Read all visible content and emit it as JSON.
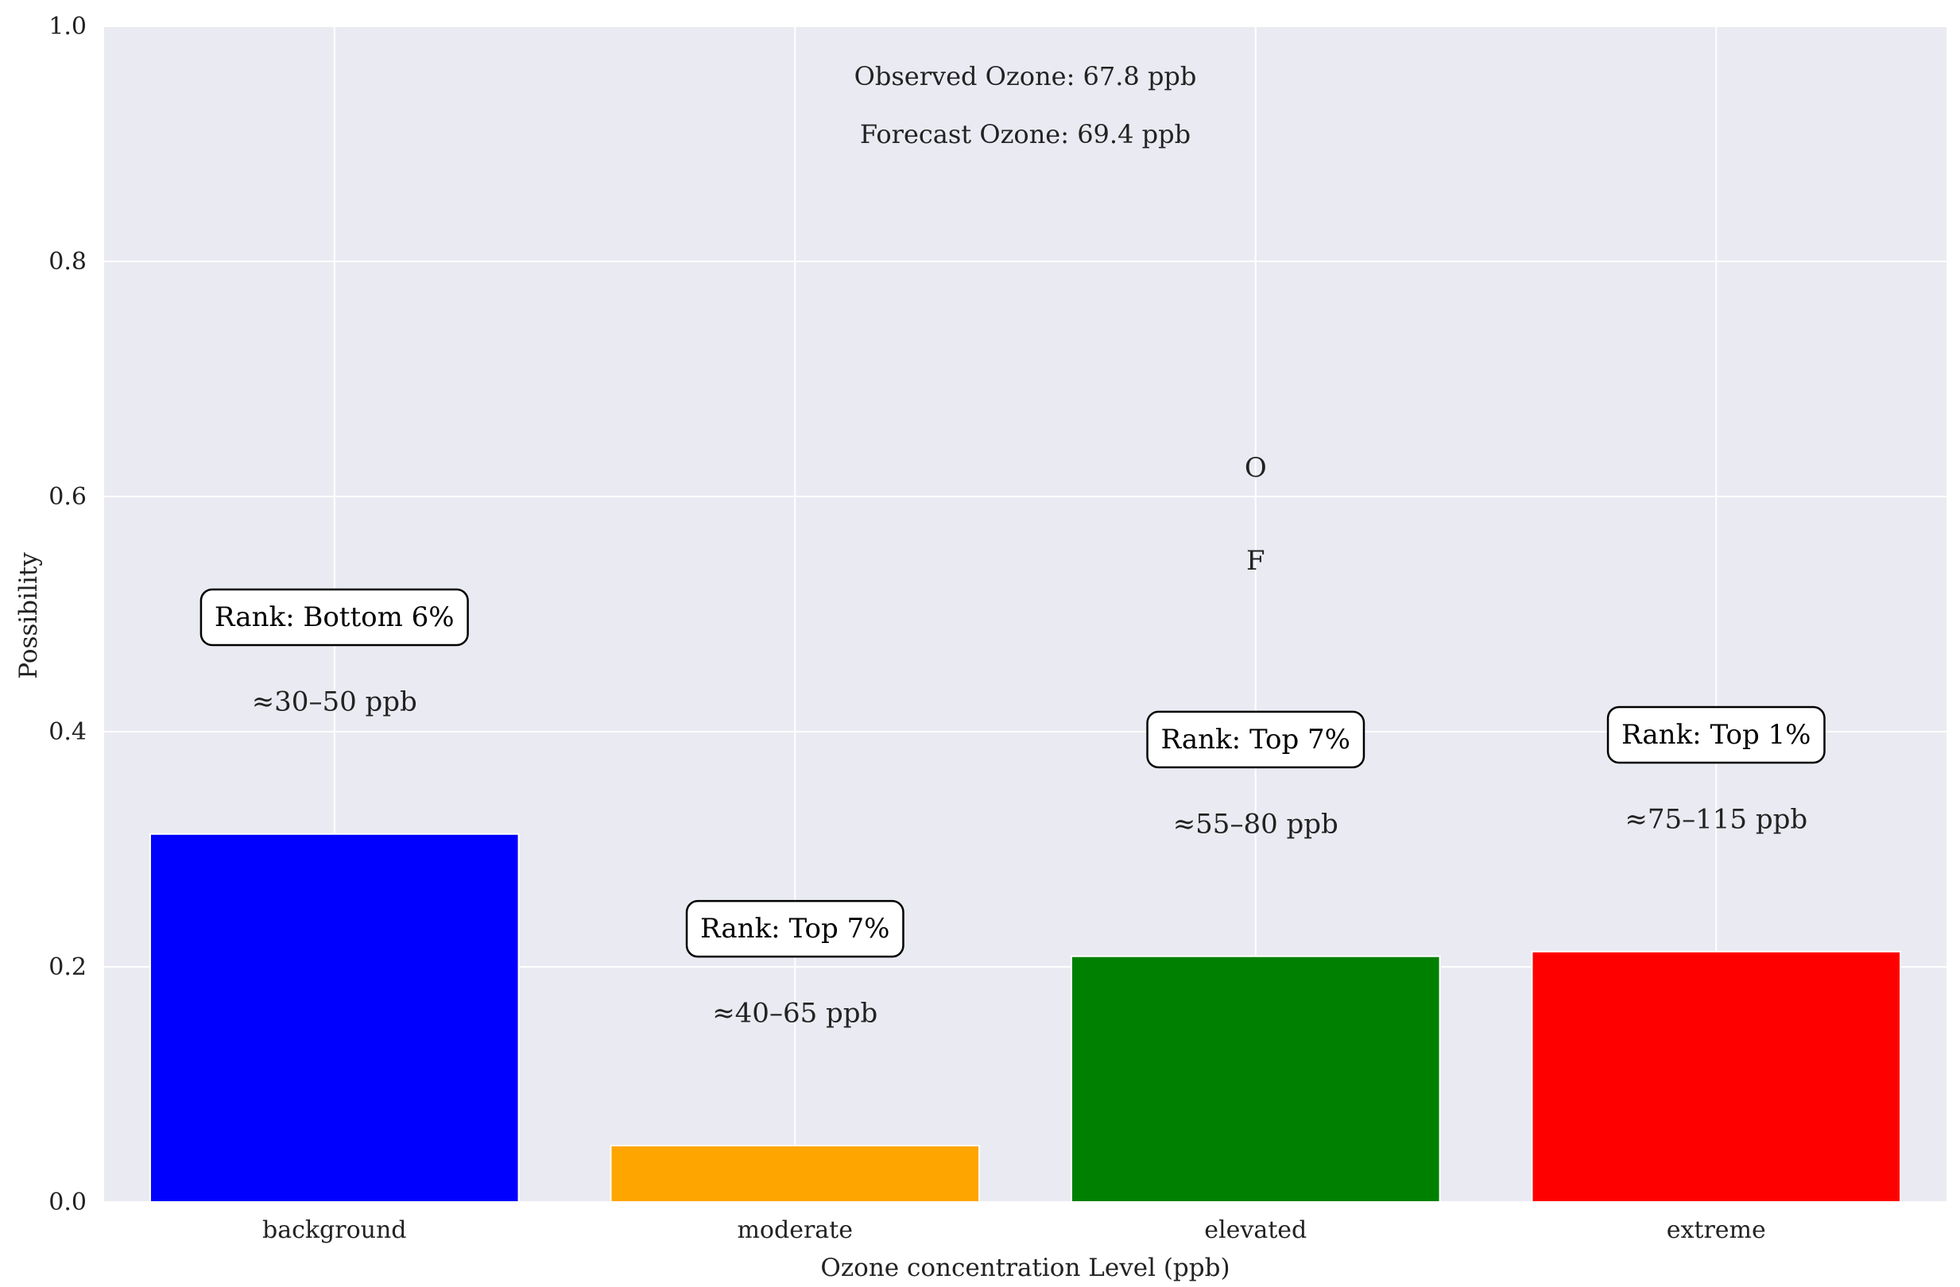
{
  "chart_data": {
    "type": "bar",
    "categories": [
      "background",
      "moderate",
      "elevated",
      "extreme"
    ],
    "values": [
      0.313,
      0.048,
      0.209,
      0.213
    ],
    "colors": [
      "#0000ff",
      "#ffa500",
      "#008000",
      "#ff0000"
    ],
    "ranks": [
      "Rank: Bottom 6%",
      "Rank: Top 7%",
      "Rank: Top 7%",
      "Rank: Top 1%"
    ],
    "ranges": [
      "≈30–50 ppb",
      "≈40–65 ppb",
      "≈55–80 ppb",
      "≈75–115 ppb"
    ],
    "xlabel": "Ozone concentration Level (ppb)",
    "ylabel": "Possibility",
    "ylim": [
      0,
      1.0
    ],
    "yticks": [
      0.0,
      0.2,
      0.4,
      0.6,
      0.8,
      1.0
    ],
    "ytick_labels": [
      "0.0",
      "0.2",
      "0.4",
      "0.6",
      "0.8",
      "1.0"
    ],
    "annotations": {
      "observed": "Observed Ozone: 67.8 ppb",
      "forecast": "Forecast Ozone: 69.4 ppb"
    },
    "markers": {
      "category": "elevated",
      "observed_label": "O",
      "observed_y": 0.625,
      "forecast_label": "F",
      "forecast_y": 0.546
    },
    "grid": true,
    "background": "#eaeaf2"
  }
}
